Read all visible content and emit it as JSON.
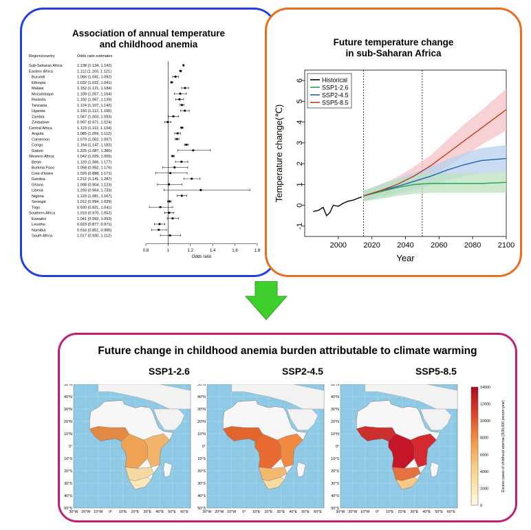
{
  "forest": {
    "title_line1": "Association of annual temperature",
    "title_line2": "and childhood anemia",
    "col_region": "Region/country",
    "col_or": "Odds ratio estimates",
    "xlabel": "Odds ratio",
    "xticks": [
      "0.8",
      "1",
      "1.2",
      "1.4",
      "1.6",
      "1.8"
    ],
    "rows": [
      {
        "name": "Sub-Saharan Africa",
        "label": "1.138 (1.134, 1.142)",
        "est": 1.138,
        "lo": 1.134,
        "hi": 1.142,
        "indent": false
      },
      {
        "name": "Eastern Africa",
        "label": "1.112 (1.103, 1.121)",
        "est": 1.112,
        "lo": 1.103,
        "hi": 1.121,
        "indent": false
      },
      {
        "name": "Burundi",
        "label": "1.066 (1.041, 1.092)",
        "est": 1.066,
        "lo": 1.041,
        "hi": 1.092,
        "indent": true
      },
      {
        "name": "Ethiopia",
        "label": "1.032 (1.022, 1.041)",
        "est": 1.032,
        "lo": 1.022,
        "hi": 1.041,
        "indent": true
      },
      {
        "name": "Malawi",
        "label": "1.152 (1.121, 1.184)",
        "est": 1.152,
        "lo": 1.121,
        "hi": 1.184,
        "indent": true
      },
      {
        "name": "Mozambique",
        "label": "1.109 (1.057, 1.164)",
        "est": 1.109,
        "lo": 1.057,
        "hi": 1.164,
        "indent": true
      },
      {
        "name": "Rwanda",
        "label": "1.102 (1.067, 1.139)",
        "est": 1.102,
        "lo": 1.067,
        "hi": 1.139,
        "indent": true
      },
      {
        "name": "Tanzania",
        "label": "1.124 (1.107, 1.142)",
        "est": 1.124,
        "lo": 1.107,
        "hi": 1.142,
        "indent": true
      },
      {
        "name": "Uganda",
        "label": "1.150 (1.112, 1.190)",
        "est": 1.15,
        "lo": 1.112,
        "hi": 1.19,
        "indent": true
      },
      {
        "name": "Zambia",
        "label": "1.047 (1.003, 1.093)",
        "est": 1.047,
        "lo": 1.003,
        "hi": 1.093,
        "indent": true
      },
      {
        "name": "Zimbabwe",
        "label": "0.997 (0.971, 1.024)",
        "est": 0.997,
        "lo": 0.971,
        "hi": 1.024,
        "indent": true
      },
      {
        "name": "Central Africa",
        "label": "1.123 (1.112, 1.134)",
        "est": 1.123,
        "lo": 1.112,
        "hi": 1.134,
        "indent": false
      },
      {
        "name": "Angola",
        "label": "1.085 (1.059, 1.112)",
        "est": 1.085,
        "lo": 1.059,
        "hi": 1.112,
        "indent": true
      },
      {
        "name": "Cameroon",
        "label": "1.079 (1.062, 1.097)",
        "est": 1.079,
        "lo": 1.062,
        "hi": 1.097,
        "indent": true
      },
      {
        "name": "Congo",
        "label": "1.164 (1.147, 1.182)",
        "est": 1.164,
        "lo": 1.147,
        "hi": 1.182,
        "indent": true
      },
      {
        "name": "Gabon",
        "label": "1.225 (1.087, 1.380)",
        "est": 1.225,
        "lo": 1.087,
        "hi": 1.38,
        "indent": true
      },
      {
        "name": "Western Africa",
        "label": "1.042 (1.029, 1.055)",
        "est": 1.042,
        "lo": 1.029,
        "hi": 1.055,
        "indent": false
      },
      {
        "name": "Benin",
        "label": "1.120 (1.066, 1.177)",
        "est": 1.12,
        "lo": 1.066,
        "hi": 1.177,
        "indent": true
      },
      {
        "name": "Burkina Faso",
        "label": "1.058 (0.952, 1.176)",
        "est": 1.058,
        "lo": 0.952,
        "hi": 1.176,
        "indent": true
      },
      {
        "name": "Cote d'Ivoire",
        "label": "1.020 (0.888, 1.171)",
        "est": 1.02,
        "lo": 0.888,
        "hi": 1.171,
        "indent": true
      },
      {
        "name": "Gambia",
        "label": "1.212 (1.141, 1.287)",
        "est": 1.212,
        "lo": 1.141,
        "hi": 1.287,
        "indent": true
      },
      {
        "name": "Ghana",
        "label": "1.008 (0.904, 1.123)",
        "est": 1.008,
        "lo": 0.904,
        "hi": 1.123,
        "indent": true
      },
      {
        "name": "Liberia",
        "label": "1.293 (0.964, 1.733)",
        "est": 1.293,
        "lo": 0.964,
        "hi": 1.733,
        "indent": true
      },
      {
        "name": "Nigeria",
        "label": "1.123 (1.081, 1.167)",
        "est": 1.123,
        "lo": 1.081,
        "hi": 1.167,
        "indent": true
      },
      {
        "name": "Senegal",
        "label": "1.012 (0.994, 1.029)",
        "est": 1.012,
        "lo": 0.994,
        "hi": 1.029,
        "indent": true
      },
      {
        "name": "Togo",
        "label": "0.930 (0.831, 1.041)",
        "est": 0.93,
        "lo": 0.831,
        "hi": 1.041,
        "indent": true
      },
      {
        "name": "Southern Africa",
        "label": "1.010 (0.970, 1.052)",
        "est": 1.01,
        "lo": 0.97,
        "hi": 1.052,
        "indent": false
      },
      {
        "name": "Eswatini",
        "label": "1.041 (0.992, 1.093)",
        "est": 1.041,
        "lo": 0.992,
        "hi": 1.093,
        "indent": true
      },
      {
        "name": "Lesotho",
        "label": "0.923 (0.877, 0.971)",
        "est": 0.923,
        "lo": 0.877,
        "hi": 0.971,
        "indent": true
      },
      {
        "name": "Namibia",
        "label": "0.916 (0.851, 0.986)",
        "est": 0.916,
        "lo": 0.851,
        "hi": 0.986,
        "indent": true
      },
      {
        "name": "South Africa",
        "label": "1.017 (0.930, 1.112)",
        "est": 1.017,
        "lo": 0.93,
        "hi": 1.112,
        "indent": true
      }
    ]
  },
  "temperature": {
    "title_line1": "Future temperature change",
    "title_line2": "in sub-Saharan Africa",
    "xlabel": "Year",
    "ylabel": "Temperature change(℃)",
    "xticks": [
      2000,
      2020,
      2040,
      2060,
      2080,
      2100
    ],
    "yticks": [
      -1,
      0,
      1,
      2,
      3,
      4,
      5,
      6
    ],
    "legend": [
      "Historical",
      "SSP1-2.6",
      "SSP2-4.5",
      "SSP5-8.5"
    ],
    "colors": {
      "historical": "#000000",
      "ssp126": "#2aa44a",
      "ssp245": "#2060b0",
      "ssp585": "#c0391c",
      "ssp126_band": "#b9e2bf",
      "ssp245_band": "#b7d0ee",
      "ssp585_band": "#f6c2c6"
    }
  },
  "maps": {
    "title": "Future change in childhood anemia burden attributable to climate warming",
    "scenarios": [
      "SSP1-2.6",
      "SSP2-4.5",
      "SSP5-8.5"
    ],
    "lat_labels": [
      "50°N",
      "40°N",
      "30°N",
      "20°N",
      "10°N",
      "0°",
      "10°S",
      "20°S",
      "30°S",
      "40°S",
      "50°S"
    ],
    "lon_labels": [
      "30°W",
      "20°W",
      "10°W",
      "0°",
      "10°E",
      "20°E",
      "30°E",
      "40°E",
      "50°E",
      "60°E"
    ],
    "colorbar_label": "Excess cases of childhood anemia (/100,000 person-year)",
    "colorbar_ticks": [
      "0",
      "2000",
      "4000",
      "6000",
      "8000",
      "10000",
      "12000",
      "14000"
    ]
  },
  "chart_data": [
    {
      "type": "scatter",
      "title": "Association of annual temperature and childhood anemia",
      "xlabel": "Odds ratio",
      "xlim": [
        0.8,
        1.8
      ],
      "reference_line": 1,
      "categories": [
        "Sub-Saharan Africa",
        "Eastern Africa",
        "Burundi",
        "Ethiopia",
        "Malawi",
        "Mozambique",
        "Rwanda",
        "Tanzania",
        "Uganda",
        "Zambia",
        "Zimbabwe",
        "Central Africa",
        "Angola",
        "Cameroon",
        "Congo",
        "Gabon",
        "Western Africa",
        "Benin",
        "Burkina Faso",
        "Cote d'Ivoire",
        "Gambia",
        "Ghana",
        "Liberia",
        "Nigeria",
        "Senegal",
        "Togo",
        "Southern Africa",
        "Eswatini",
        "Lesotho",
        "Namibia",
        "South Africa"
      ],
      "estimates": [
        1.138,
        1.112,
        1.066,
        1.032,
        1.152,
        1.109,
        1.102,
        1.124,
        1.15,
        1.047,
        0.997,
        1.123,
        1.085,
        1.079,
        1.164,
        1.225,
        1.042,
        1.12,
        1.058,
        1.02,
        1.212,
        1.008,
        1.293,
        1.123,
        1.012,
        0.93,
        1.01,
        1.041,
        0.923,
        0.916,
        1.017
      ],
      "lower": [
        1.134,
        1.103,
        1.041,
        1.022,
        1.121,
        1.057,
        1.067,
        1.107,
        1.112,
        1.003,
        0.971,
        1.112,
        1.059,
        1.062,
        1.147,
        1.087,
        1.029,
        1.066,
        0.952,
        0.888,
        1.141,
        0.904,
        0.964,
        1.081,
        0.994,
        0.831,
        0.97,
        0.992,
        0.877,
        0.851,
        0.93
      ],
      "upper": [
        1.142,
        1.121,
        1.092,
        1.041,
        1.184,
        1.164,
        1.139,
        1.142,
        1.19,
        1.093,
        1.024,
        1.134,
        1.112,
        1.097,
        1.182,
        1.38,
        1.055,
        1.177,
        1.176,
        1.171,
        1.287,
        1.123,
        1.733,
        1.167,
        1.029,
        1.041,
        1.052,
        1.093,
        0.971,
        0.986,
        1.112
      ]
    },
    {
      "type": "line",
      "title": "Future temperature change in sub-Saharan Africa",
      "xlabel": "Year",
      "ylabel": "Temperature change(℃)",
      "xlim": [
        1980,
        2100
      ],
      "ylim": [
        -1.5,
        6.5
      ],
      "vertical_lines": [
        2015,
        2050
      ],
      "legend_position": "top-left",
      "series": [
        {
          "name": "Historical",
          "x": [
            1985,
            1988,
            1991,
            1993,
            1995,
            1997,
            2000,
            2003,
            2006,
            2009,
            2012,
            2014
          ],
          "y": [
            -0.3,
            -0.25,
            -0.1,
            -0.5,
            -0.35,
            0.0,
            -0.05,
            0.1,
            0.2,
            0.25,
            0.35,
            0.4
          ]
        },
        {
          "name": "SSP1-2.6",
          "x": [
            2015,
            2025,
            2035,
            2045,
            2055,
            2065,
            2075,
            2085,
            2100
          ],
          "y": [
            0.45,
            0.65,
            0.85,
            1.0,
            1.05,
            1.05,
            1.05,
            1.05,
            1.1
          ],
          "band_low": [
            0.2,
            0.3,
            0.45,
            0.55,
            0.6,
            0.6,
            0.6,
            0.6,
            0.6
          ],
          "band_high": [
            0.7,
            0.95,
            1.25,
            1.45,
            1.55,
            1.55,
            1.55,
            1.55,
            1.6
          ]
        },
        {
          "name": "SSP2-4.5",
          "x": [
            2015,
            2025,
            2035,
            2045,
            2055,
            2065,
            2075,
            2085,
            2100
          ],
          "y": [
            0.45,
            0.7,
            0.9,
            1.15,
            1.4,
            1.7,
            1.95,
            2.15,
            2.25
          ],
          "band_low": [
            0.2,
            0.4,
            0.55,
            0.75,
            0.95,
            1.2,
            1.4,
            1.55,
            1.6
          ],
          "band_high": [
            0.7,
            1.0,
            1.25,
            1.55,
            1.85,
            2.2,
            2.5,
            2.75,
            2.9
          ]
        },
        {
          "name": "SSP5-8.5",
          "x": [
            2015,
            2025,
            2035,
            2045,
            2055,
            2065,
            2075,
            2085,
            2100
          ],
          "y": [
            0.45,
            0.7,
            1.0,
            1.4,
            1.9,
            2.5,
            3.1,
            3.7,
            4.6
          ],
          "band_low": [
            0.2,
            0.4,
            0.65,
            1.0,
            1.4,
            1.85,
            2.35,
            2.9,
            3.6
          ],
          "band_high": [
            0.7,
            1.0,
            1.35,
            1.85,
            2.4,
            3.15,
            3.9,
            4.55,
            5.6
          ]
        }
      ]
    }
  ]
}
